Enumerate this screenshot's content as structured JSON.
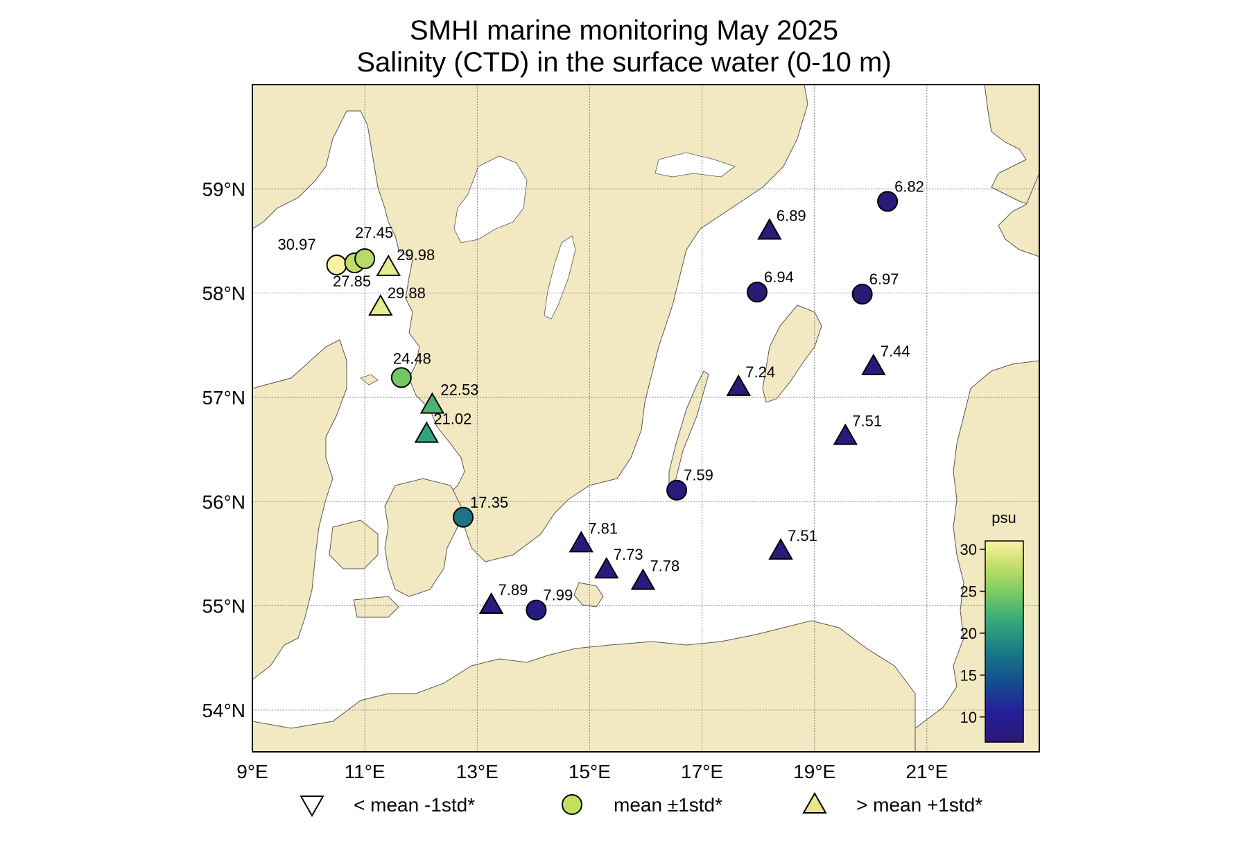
{
  "title": "SMHI marine monitoring May 2025",
  "subtitle": "Salinity (CTD) in the surface water (0-10 m)",
  "map": {
    "extent": {
      "lon": [
        9.0,
        23.0
      ],
      "lat": [
        53.6,
        60.0
      ]
    },
    "lon_ticks": [
      {
        "value": 9,
        "label": "9°E"
      },
      {
        "value": 11,
        "label": "11°E"
      },
      {
        "value": 13,
        "label": "13°E"
      },
      {
        "value": 15,
        "label": "15°E"
      },
      {
        "value": 17,
        "label": "17°E"
      },
      {
        "value": 19,
        "label": "19°E"
      },
      {
        "value": 21,
        "label": "21°E"
      }
    ],
    "lat_ticks": [
      {
        "value": 54,
        "label": "54°N"
      },
      {
        "value": 55,
        "label": "55°N"
      },
      {
        "value": 56,
        "label": "56°N"
      },
      {
        "value": 57,
        "label": "57°N"
      },
      {
        "value": 58,
        "label": "58°N"
      },
      {
        "value": 59,
        "label": "59°N"
      }
    ],
    "land_color": "#f2e9c2",
    "sea_color": "#ffffff"
  },
  "colorbar": {
    "label": "psu",
    "min": 7,
    "max": 31,
    "ticks": [
      10,
      15,
      20,
      25,
      30
    ]
  },
  "stations": [
    {
      "lon": 10.5,
      "lat": 58.27,
      "value": "30.97",
      "symbol": "circle"
    },
    {
      "lon": 10.82,
      "lat": 58.29,
      "value": "27.85",
      "symbol": "circle"
    },
    {
      "lon": 11.0,
      "lat": 58.33,
      "value": "27.45",
      "symbol": "circle"
    },
    {
      "lon": 11.42,
      "lat": 58.25,
      "value": "29.98",
      "symbol": "triangle-up"
    },
    {
      "lon": 11.28,
      "lat": 57.87,
      "value": "29.88",
      "symbol": "triangle-up"
    },
    {
      "lon": 11.65,
      "lat": 57.19,
      "value": "24.48",
      "symbol": "circle"
    },
    {
      "lon": 12.2,
      "lat": 56.93,
      "value": "22.53",
      "symbol": "triangle-up"
    },
    {
      "lon": 12.1,
      "lat": 56.65,
      "value": "21.02",
      "symbol": "triangle-up"
    },
    {
      "lon": 12.75,
      "lat": 55.85,
      "value": "17.35",
      "symbol": "circle"
    },
    {
      "lon": 13.25,
      "lat": 55.01,
      "value": "7.89",
      "symbol": "triangle-up"
    },
    {
      "lon": 14.05,
      "lat": 54.96,
      "value": "7.99",
      "symbol": "circle"
    },
    {
      "lon": 14.85,
      "lat": 55.6,
      "value": "7.81",
      "symbol": "triangle-up"
    },
    {
      "lon": 15.3,
      "lat": 55.35,
      "value": "7.73",
      "symbol": "triangle-up"
    },
    {
      "lon": 15.95,
      "lat": 55.24,
      "value": "7.78",
      "symbol": "triangle-up"
    },
    {
      "lon": 16.55,
      "lat": 56.11,
      "value": "7.59",
      "symbol": "circle"
    },
    {
      "lon": 18.4,
      "lat": 55.53,
      "value": "7.51",
      "symbol": "triangle-up"
    },
    {
      "lon": 17.65,
      "lat": 57.1,
      "value": "7.24",
      "symbol": "triangle-up"
    },
    {
      "lon": 17.98,
      "lat": 58.01,
      "value": "6.94",
      "symbol": "circle"
    },
    {
      "lon": 18.2,
      "lat": 58.6,
      "value": "6.89",
      "symbol": "triangle-up"
    },
    {
      "lon": 19.85,
      "lat": 57.99,
      "value": "6.97",
      "symbol": "circle"
    },
    {
      "lon": 20.3,
      "lat": 58.88,
      "value": "6.82",
      "symbol": "circle"
    },
    {
      "lon": 20.05,
      "lat": 57.3,
      "value": "7.44",
      "symbol": "triangle-up"
    },
    {
      "lon": 19.55,
      "lat": 56.63,
      "value": "7.51",
      "symbol": "triangle-up"
    }
  ],
  "legend": [
    {
      "symbol": "triangle-down",
      "label": "< mean -1std*",
      "color": "#ffffff"
    },
    {
      "symbol": "circle",
      "label": "mean ±1std*",
      "color": "#c2df62"
    },
    {
      "symbol": "triangle-up",
      "label": "> mean +1std*",
      "color": "#ede387"
    }
  ]
}
